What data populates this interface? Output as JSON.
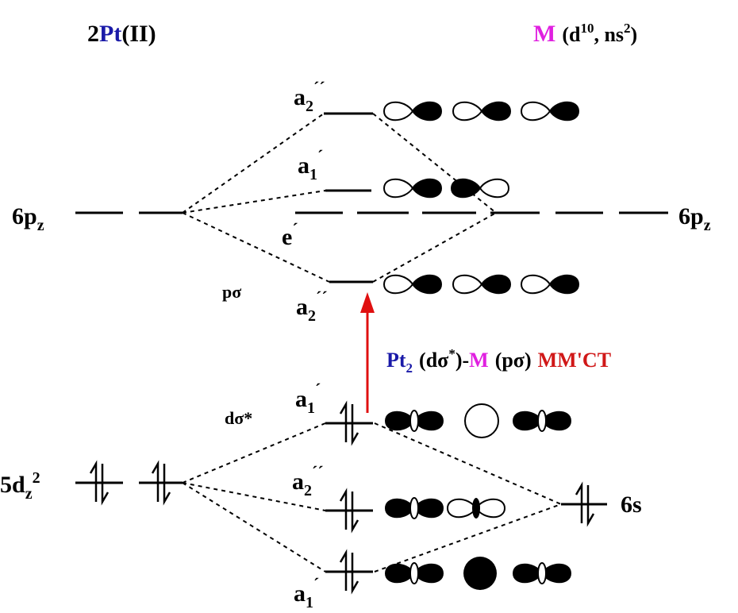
{
  "titles": {
    "left": {
      "num": "2",
      "metal": "Pt",
      "ox": "(II)"
    },
    "right": {
      "metal": "M",
      "open": "(d",
      "d_count": "10",
      "mid": ", ns",
      "s_count": "2",
      "close": ")"
    }
  },
  "atomic": {
    "left_p": {
      "base": "6p",
      "sub": "z"
    },
    "left_d": {
      "base": "5d",
      "sub": "z",
      "sup": "2"
    },
    "right_p": {
      "base": "6p",
      "sub": "z"
    },
    "right_s": "6s"
  },
  "mo_labels": [
    {
      "base": "a",
      "sub": "2",
      "prime": "´´"
    },
    {
      "base": "a",
      "sub": "1",
      "prime": "´"
    },
    {
      "base": "e",
      "prime": "´"
    },
    {
      "base": "a",
      "sub": "2",
      "prime": "´´"
    },
    {
      "base": "a",
      "sub": "1",
      "prime": "´"
    },
    {
      "base": "a",
      "sub": "2",
      "prime": "´´"
    },
    {
      "base": "a",
      "sub": "1",
      "prime": "´"
    }
  ],
  "orbital_notes": {
    "p_sigma": "pσ",
    "d_sigma": "dσ*"
  },
  "transition": {
    "donor": "Pt",
    "donor_count": "2",
    "donor_orbital": "(dσ",
    "star": "*",
    "link": ")-",
    "acceptor": "M",
    "acceptor_orbital": "(pσ)",
    "label": "MM'CT"
  }
}
